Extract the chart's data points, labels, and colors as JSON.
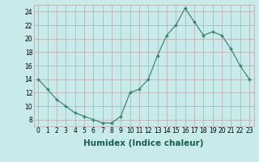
{
  "x": [
    0,
    1,
    2,
    3,
    4,
    5,
    6,
    7,
    8,
    9,
    10,
    11,
    12,
    13,
    14,
    15,
    16,
    17,
    18,
    19,
    20,
    21,
    22,
    23
  ],
  "y": [
    14,
    12.5,
    11,
    10,
    9,
    8.5,
    8,
    7.5,
    7.5,
    8.5,
    12,
    12.5,
    14,
    17.5,
    20.5,
    22,
    24.5,
    22.5,
    20.5,
    21,
    20.5,
    18.5,
    16,
    14
  ],
  "xlabel": "Humidex (Indice chaleur)",
  "xlim": [
    -0.5,
    23.5
  ],
  "ylim": [
    7,
    25
  ],
  "yticks": [
    8,
    10,
    12,
    14,
    16,
    18,
    20,
    22,
    24
  ],
  "xticks": [
    0,
    1,
    2,
    3,
    4,
    5,
    6,
    7,
    8,
    9,
    10,
    11,
    12,
    13,
    14,
    15,
    16,
    17,
    18,
    19,
    20,
    21,
    22,
    23
  ],
  "line_color": "#2e7d6e",
  "marker_color": "#2e7d6e",
  "bg_color": "#c8eaea",
  "grid_color": "#b8a8a8",
  "tick_fontsize": 5.5,
  "xlabel_fontsize": 7.5,
  "xlabel_color": "#1a5c50"
}
